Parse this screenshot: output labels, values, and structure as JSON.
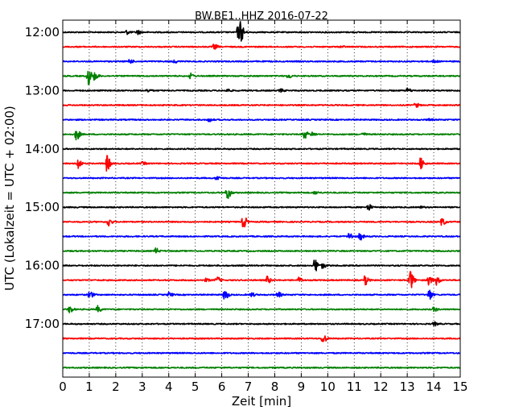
{
  "chart_data": {
    "type": "line",
    "title": "BW.BE1..HHZ 2016-07-22",
    "xlabel": "Zeit  [min]",
    "ylabel": "UTC (Lokalzeit = UTC + 02:00)",
    "xlim": [
      0,
      15
    ],
    "x_ticks": [
      "0",
      "1",
      "2",
      "3",
      "4",
      "5",
      "6",
      "7",
      "8",
      "9",
      "10",
      "11",
      "12",
      "13",
      "14",
      "15"
    ],
    "y_tick_labels": [
      "12:00",
      "13:00",
      "14:00",
      "15:00",
      "16:00",
      "17:00"
    ],
    "grid": {
      "vertical": "dotted",
      "horizontal": false
    },
    "trace_colors": [
      "#000000",
      "#ff0000",
      "#0000ff",
      "#008000"
    ],
    "traces": [
      {
        "start": "12:00",
        "color": "#000000",
        "events": [
          [
            2.4,
            0.25
          ],
          [
            2.8,
            0.3
          ],
          [
            6.7,
            1.1
          ],
          [
            6.6,
            0.8
          ]
        ]
      },
      {
        "start": "12:15",
        "color": "#ff0000",
        "events": [
          [
            5.7,
            0.35
          ],
          [
            10.5,
            0.1
          ]
        ]
      },
      {
        "start": "12:30",
        "color": "#0000ff",
        "events": [
          [
            2.5,
            0.3
          ],
          [
            4.2,
            0.2
          ],
          [
            14.0,
            0.2
          ]
        ]
      },
      {
        "start": "12:45",
        "color": "#008000",
        "events": [
          [
            0.95,
            1.2
          ],
          [
            1.2,
            0.5
          ],
          [
            4.8,
            0.35
          ],
          [
            8.5,
            0.3
          ]
        ]
      },
      {
        "start": "13:00",
        "color": "#000000",
        "events": [
          [
            3.2,
            0.2
          ],
          [
            6.2,
            0.2
          ],
          [
            8.2,
            0.2
          ],
          [
            13.0,
            0.3
          ]
        ]
      },
      {
        "start": "13:15",
        "color": "#ff0000",
        "events": [
          [
            13.3,
            0.3
          ]
        ]
      },
      {
        "start": "13:30",
        "color": "#0000ff",
        "events": [
          [
            5.5,
            0.25
          ],
          [
            13.8,
            0.15
          ]
        ]
      },
      {
        "start": "13:45",
        "color": "#008000",
        "events": [
          [
            0.5,
            0.8
          ],
          [
            9.1,
            0.6
          ],
          [
            9.4,
            0.3
          ],
          [
            11.3,
            0.2
          ]
        ]
      },
      {
        "start": "14:00",
        "color": "#000000",
        "events": []
      },
      {
        "start": "14:15",
        "color": "#ff0000",
        "events": [
          [
            0.55,
            0.8
          ],
          [
            1.65,
            1.1
          ],
          [
            3.0,
            0.2
          ],
          [
            13.5,
            0.8
          ]
        ]
      },
      {
        "start": "14:30",
        "color": "#0000ff",
        "events": [
          [
            5.8,
            0.3
          ]
        ]
      },
      {
        "start": "14:45",
        "color": "#008000",
        "events": [
          [
            6.2,
            0.9
          ],
          [
            9.5,
            0.2
          ]
        ]
      },
      {
        "start": "15:00",
        "color": "#000000",
        "events": [
          [
            11.5,
            0.5
          ],
          [
            13.5,
            0.1
          ]
        ]
      },
      {
        "start": "15:15",
        "color": "#ff0000",
        "events": [
          [
            1.7,
            0.6
          ],
          [
            6.8,
            0.9
          ],
          [
            14.3,
            0.5
          ]
        ]
      },
      {
        "start": "15:30",
        "color": "#0000ff",
        "events": [
          [
            10.8,
            0.5
          ],
          [
            11.2,
            0.5
          ]
        ]
      },
      {
        "start": "15:45",
        "color": "#008000",
        "events": [
          [
            3.5,
            0.35
          ]
        ]
      },
      {
        "start": "16:00",
        "color": "#000000",
        "events": [
          [
            9.5,
            1.0
          ],
          [
            9.8,
            0.35
          ]
        ]
      },
      {
        "start": "16:15",
        "color": "#ff0000",
        "events": [
          [
            5.4,
            0.2
          ],
          [
            5.8,
            0.45
          ],
          [
            7.7,
            0.5
          ],
          [
            8.9,
            0.35
          ],
          [
            11.4,
            0.6
          ],
          [
            13.1,
            1.4
          ],
          [
            13.8,
            0.7
          ],
          [
            14.1,
            0.6
          ]
        ]
      },
      {
        "start": "16:30",
        "color": "#0000ff",
        "events": [
          [
            1.0,
            0.55
          ],
          [
            4.0,
            0.3
          ],
          [
            6.1,
            0.8
          ],
          [
            7.1,
            0.3
          ],
          [
            8.1,
            0.4
          ],
          [
            13.8,
            0.8
          ]
        ]
      },
      {
        "start": "16:45",
        "color": "#008000",
        "events": [
          [
            0.25,
            0.5
          ],
          [
            1.3,
            0.45
          ],
          [
            14.0,
            0.3
          ]
        ]
      },
      {
        "start": "17:00",
        "color": "#000000",
        "events": [
          [
            14.0,
            0.25
          ]
        ]
      },
      {
        "start": "17:15",
        "color": "#ff0000",
        "events": [
          [
            9.8,
            0.7
          ]
        ]
      },
      {
        "start": "17:30",
        "color": "#0000ff",
        "events": []
      },
      {
        "start": "17:45",
        "color": "#008000",
        "events": []
      }
    ]
  }
}
